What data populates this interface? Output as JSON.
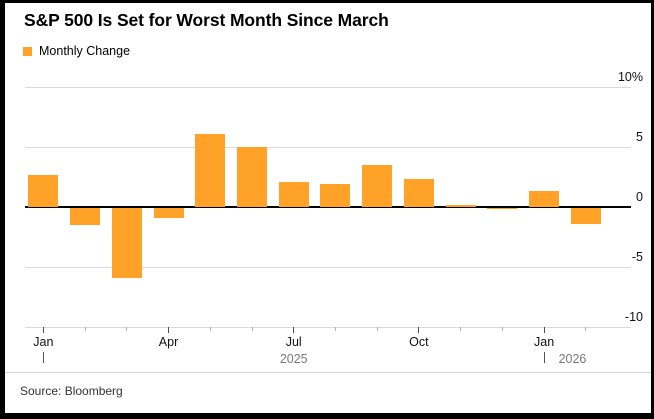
{
  "title": "S&P 500 Is Set for Worst Month Since March",
  "legend": {
    "label": "Monthly Change",
    "swatch_color": "#FFA227"
  },
  "source": "Source: Bloomberg",
  "colors": {
    "bar_orange": "#FFA227",
    "gridline": "#dadada",
    "zero_line": "#000000",
    "axis_text": "#111111",
    "year_text": "#7a7a7a",
    "frame": "#000000",
    "background": "#ffffff"
  },
  "chart_data": {
    "type": "bar",
    "title": "S&P 500 Is Set for Worst Month Since March",
    "series_name": "Monthly Change",
    "x": [
      "Jan 2025",
      "Feb 2025",
      "Mar 2025",
      "Apr 2025",
      "May 2025",
      "Jun 2025",
      "Jul 2025",
      "Aug 2025",
      "Sep 2025",
      "Oct 2025",
      "Nov 2025",
      "Dec 2025",
      "Jan 2026",
      "Feb 2026"
    ],
    "values": [
      2.7,
      -1.4,
      -5.8,
      -0.8,
      6.1,
      5.0,
      2.1,
      1.9,
      3.5,
      2.3,
      0.2,
      -0.1,
      1.3,
      -1.3
    ],
    "unit": "%",
    "ylim": [
      -10,
      10
    ],
    "yticks": [
      10,
      5,
      0,
      -5,
      -10
    ],
    "ytick_labels": [
      "10%",
      "5",
      "0",
      "-5",
      "-10"
    ],
    "xticks": [
      {
        "index": 0,
        "label": "Jan"
      },
      {
        "index": 3,
        "label": "Apr"
      },
      {
        "index": 6,
        "label": "Jul"
      },
      {
        "index": 9,
        "label": "Oct"
      },
      {
        "index": 12,
        "label": "Jan"
      }
    ],
    "years": [
      {
        "index": 0,
        "label": "2025",
        "divider_glyph": "|"
      },
      {
        "index": 12,
        "label": "2026",
        "divider_glyph": "|"
      }
    ],
    "grid": true,
    "legend_position": "top-left",
    "ylabel": "",
    "xlabel": ""
  }
}
